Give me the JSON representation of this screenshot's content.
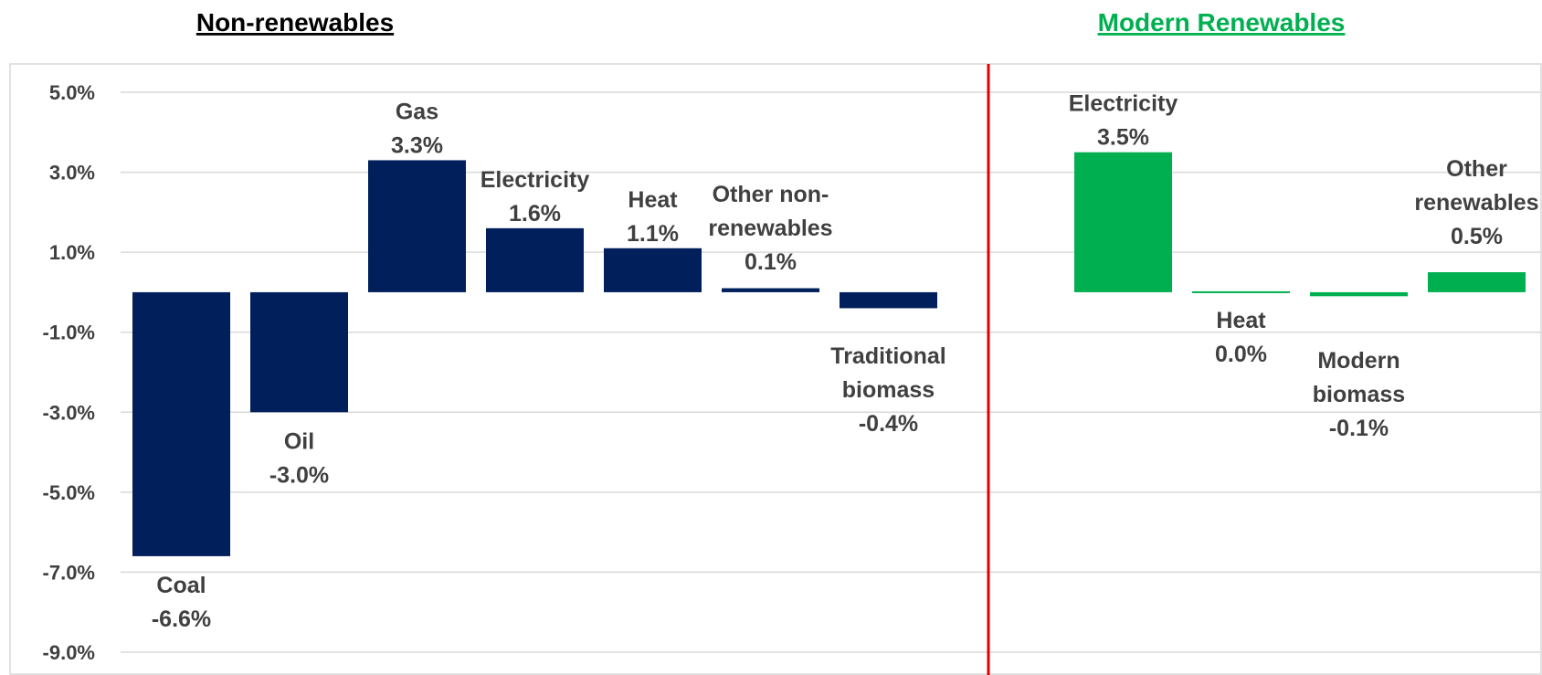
{
  "chart_data": {
    "type": "bar",
    "ylim": [
      -9.0,
      5.0
    ],
    "yticks": [
      "5.0%",
      "3.0%",
      "1.0%",
      "-1.0%",
      "-3.0%",
      "-5.0%",
      "-7.0%",
      "-9.0%"
    ],
    "grid": true,
    "groups": [
      {
        "title": "Non-renewables",
        "title_color": "#000000",
        "bar_color": "#001F5B",
        "bars": [
          {
            "name": "Coal",
            "value": -6.6,
            "label": "-6.6%"
          },
          {
            "name": "Oil",
            "value": -3.0,
            "label": "-3.0%"
          },
          {
            "name": "Gas",
            "value": 3.3,
            "label": "3.3%"
          },
          {
            "name": "Electricity",
            "value": 1.6,
            "label": "1.6%"
          },
          {
            "name": "Heat",
            "value": 1.1,
            "label": "1.1%"
          },
          {
            "name": "Other non-renewables",
            "value": 0.1,
            "label": "0.1%"
          },
          {
            "name": "Traditional biomass",
            "value": -0.4,
            "label": "-0.4%"
          }
        ]
      },
      {
        "title": "Modern Renewables",
        "title_color": "#00B050",
        "bar_color": "#00B050",
        "bars": [
          {
            "name": "Electricity",
            "value": 3.5,
            "label": "3.5%"
          },
          {
            "name": "Heat",
            "value": 0.0,
            "label": "0.0%"
          },
          {
            "name": "Modern biomass",
            "value": -0.1,
            "label": "-0.1%"
          },
          {
            "name": "Other renewables",
            "value": 0.5,
            "label": "0.5%"
          }
        ]
      }
    ],
    "divider_color": "#E00000"
  }
}
